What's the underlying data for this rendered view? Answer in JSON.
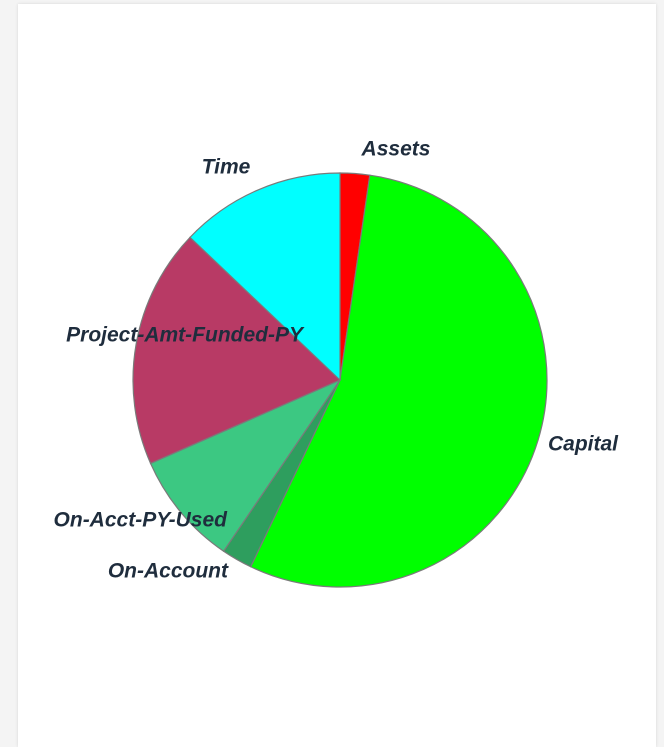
{
  "chart_data": {
    "type": "pie",
    "categories": [
      "Assets",
      "Capital",
      "On-Account",
      "On-Acct-PY-Used",
      "Project-Amt-Funded-PY",
      "Time"
    ],
    "values": [
      2.3,
      54.8,
      2.4,
      8.9,
      18.7,
      12.9
    ],
    "colors": [
      "#ff0000",
      "#00ff00",
      "#2e9e5e",
      "#3cc882",
      "#b83a65",
      "#00ffff"
    ]
  }
}
